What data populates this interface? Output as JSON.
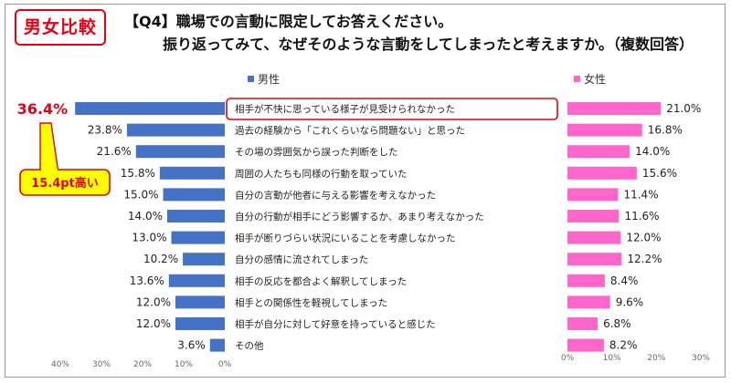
{
  "badge": "男女比較",
  "title": {
    "line1": "【Q4】職場での言動に限定してお答えください。",
    "line2": "振り返ってみて、なぜそのような言動をしてしまったと考えますか。（複数回答）"
  },
  "callout": "15.4pt高い",
  "chart_data": {
    "type": "bar",
    "categories": [
      "相手が不快に思っている様子が見受けられなかった",
      "過去の経験から「これくらいなら問題ない」と思った",
      "その場の雰囲気から誤った判断をした",
      "周囲の人たちも同様の行動を取っていた",
      "自分の言動が他者に与える影響を考えなかった",
      "自分の行動が相手にどう影響するか、あまり考えなかった",
      "相手が断りづらい状況にいることを考慮しなかった",
      "自分の感情に流されてしまった",
      "相手の反応を都合よく解釈してしまった",
      "相手との関係性を軽視してしまった",
      "相手が自分に対して好意を持っていると感じた",
      "その他"
    ],
    "series": [
      {
        "name": "男性",
        "values": [
          36.4,
          23.8,
          21.6,
          15.8,
          15.0,
          14.0,
          13.0,
          10.2,
          13.6,
          12.0,
          12.0,
          3.6
        ],
        "labels": [
          "36.4%",
          "23.8%",
          "21.6%",
          "15.8%",
          "15.0%",
          "14.0%",
          "13.0%",
          "10.2%",
          "13.6%",
          "12.0%",
          "12.0%",
          "3.6%"
        ],
        "color": "#4472c4"
      },
      {
        "name": "女性",
        "values": [
          21.0,
          16.8,
          14.0,
          15.6,
          11.4,
          11.6,
          12.0,
          12.2,
          8.4,
          9.6,
          6.8,
          8.2
        ],
        "labels": [
          "21.0%",
          "16.8%",
          "14.0%",
          "15.6%",
          "11.4%",
          "11.6%",
          "12.0%",
          "12.2%",
          "8.4%",
          "9.6%",
          "6.8%",
          "8.2%"
        ],
        "color": "#ff66cc"
      }
    ],
    "male_axis_ticks": [
      "40%",
      "30%",
      "20%",
      "10%",
      "0%"
    ],
    "female_axis_ticks": [
      "0%",
      "10%",
      "20%",
      "30%"
    ],
    "xlim": [
      0,
      40
    ],
    "highlight_color": "#e60012",
    "callout_color": "#ffff00"
  }
}
